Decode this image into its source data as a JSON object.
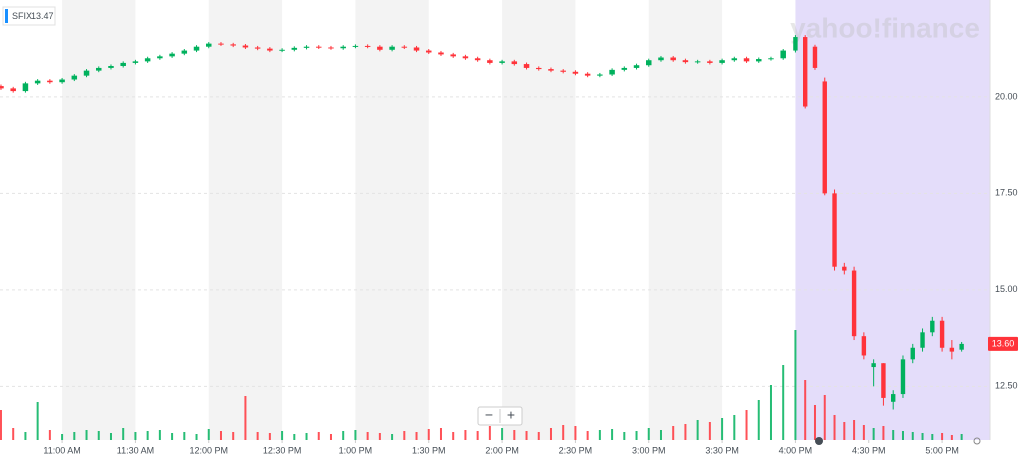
{
  "chart_data": {
    "type": "candlestick",
    "ticker": "SFIX",
    "ticker_price": 13.47,
    "watermark": "yahoo!finance",
    "controls": {
      "zoom_out": "−",
      "zoom_in": "+"
    },
    "last_price": 13.6,
    "last_price_label": "13.60",
    "up_color": "#00b15d",
    "down_color": "#ff333a",
    "legend_color": "#188fff",
    "band_color": "#f3f3f3",
    "after_hours_color": "#e4ddfa",
    "after_hours_from": 960,
    "grid": true,
    "xlim": [
      634.6,
      1039.6
    ],
    "ylim": [
      11.11,
      22.51
    ],
    "xticks": [
      {
        "value": 660,
        "label": "11:00 AM"
      },
      {
        "value": 690,
        "label": "11:30 AM"
      },
      {
        "value": 720,
        "label": "12:00 PM"
      },
      {
        "value": 750,
        "label": "12:30 PM"
      },
      {
        "value": 780,
        "label": "1:00 PM"
      },
      {
        "value": 810,
        "label": "1:30 PM"
      },
      {
        "value": 840,
        "label": "2:00 PM"
      },
      {
        "value": 870,
        "label": "2:30 PM"
      },
      {
        "value": 900,
        "label": "3:00 PM"
      },
      {
        "value": 930,
        "label": "3:30 PM"
      },
      {
        "value": 960,
        "label": "4:00 PM"
      },
      {
        "value": 990,
        "label": "4:30 PM"
      },
      {
        "value": 1020,
        "label": "5:00 PM"
      }
    ],
    "yticks": [
      {
        "value": 12.5,
        "label": "12.50"
      },
      {
        "value": 15,
        "label": "15.00"
      },
      {
        "value": 17.5,
        "label": "17.50"
      },
      {
        "value": 20,
        "label": "20.00"
      }
    ],
    "candles": [
      [
        635,
        20.28,
        20.32,
        20.18,
        20.22
      ],
      [
        640,
        20.22,
        20.26,
        20.11,
        20.15
      ],
      [
        645,
        20.15,
        20.39,
        20.11,
        20.35
      ],
      [
        650,
        20.35,
        20.46,
        20.31,
        20.42
      ],
      [
        655,
        20.42,
        20.46,
        20.34,
        20.38
      ],
      [
        660,
        20.38,
        20.49,
        20.34,
        20.45
      ],
      [
        665,
        20.45,
        20.59,
        20.41,
        20.55
      ],
      [
        670,
        20.55,
        20.72,
        20.51,
        20.68
      ],
      [
        675,
        20.68,
        20.79,
        20.64,
        20.75
      ],
      [
        680,
        20.75,
        20.84,
        20.71,
        20.8
      ],
      [
        685,
        20.8,
        20.92,
        20.76,
        20.88
      ],
      [
        690,
        20.88,
        20.96,
        20.84,
        20.92
      ],
      [
        695,
        20.92,
        21.04,
        20.88,
        21
      ],
      [
        700,
        21,
        21.09,
        20.96,
        21.05
      ],
      [
        705,
        21.05,
        21.16,
        21.01,
        21.12
      ],
      [
        710,
        21.12,
        21.24,
        21.08,
        21.2
      ],
      [
        715,
        21.2,
        21.34,
        21.16,
        21.3
      ],
      [
        720,
        21.3,
        21.42,
        21.26,
        21.38
      ],
      [
        725,
        21.38,
        21.42,
        21.32,
        21.36
      ],
      [
        730,
        21.36,
        21.4,
        21.29,
        21.33
      ],
      [
        735,
        21.33,
        21.37,
        21.24,
        21.28
      ],
      [
        740,
        21.28,
        21.32,
        21.21,
        21.25
      ],
      [
        745,
        21.25,
        21.29,
        21.16,
        21.2
      ],
      [
        750,
        21.2,
        21.26,
        21.16,
        21.22
      ],
      [
        755,
        21.22,
        21.31,
        21.18,
        21.27
      ],
      [
        760,
        21.27,
        21.34,
        21.23,
        21.3
      ],
      [
        765,
        21.3,
        21.34,
        21.24,
        21.28
      ],
      [
        770,
        21.28,
        21.32,
        21.22,
        21.26
      ],
      [
        775,
        21.26,
        21.34,
        21.22,
        21.3
      ],
      [
        780,
        21.3,
        21.36,
        21.26,
        21.32
      ],
      [
        785,
        21.32,
        21.36,
        21.26,
        21.3
      ],
      [
        790,
        21.3,
        21.34,
        21.18,
        21.22
      ],
      [
        795,
        21.22,
        21.34,
        21.18,
        21.3
      ],
      [
        800,
        21.3,
        21.34,
        21.24,
        21.28
      ],
      [
        805,
        21.28,
        21.32,
        21.16,
        21.2
      ],
      [
        810,
        21.2,
        21.24,
        21.11,
        21.15
      ],
      [
        815,
        21.15,
        21.19,
        21.06,
        21.1
      ],
      [
        820,
        21.1,
        21.14,
        21.01,
        21.05
      ],
      [
        825,
        21.05,
        21.09,
        20.96,
        21
      ],
      [
        830,
        21,
        21.04,
        20.91,
        20.95
      ],
      [
        835,
        20.95,
        20.99,
        20.84,
        20.88
      ],
      [
        840,
        20.88,
        20.96,
        20.84,
        20.92
      ],
      [
        845,
        20.92,
        20.96,
        20.81,
        20.85
      ],
      [
        850,
        20.85,
        20.89,
        20.71,
        20.75
      ],
      [
        855,
        20.75,
        20.79,
        20.68,
        20.72
      ],
      [
        860,
        20.72,
        20.76,
        20.64,
        20.68
      ],
      [
        865,
        20.68,
        20.72,
        20.61,
        20.65
      ],
      [
        870,
        20.65,
        20.69,
        20.56,
        20.6
      ],
      [
        875,
        20.6,
        20.64,
        20.51,
        20.55
      ],
      [
        880,
        20.55,
        20.62,
        20.51,
        20.58
      ],
      [
        885,
        20.58,
        20.74,
        20.54,
        20.7
      ],
      [
        890,
        20.7,
        20.79,
        20.66,
        20.75
      ],
      [
        895,
        20.75,
        20.86,
        20.71,
        20.82
      ],
      [
        900,
        20.82,
        20.99,
        20.78,
        20.95
      ],
      [
        905,
        20.95,
        21.06,
        20.91,
        21.02
      ],
      [
        910,
        21.02,
        21.06,
        20.91,
        20.95
      ],
      [
        915,
        20.95,
        20.99,
        20.86,
        20.9
      ],
      [
        920,
        20.9,
        20.96,
        20.86,
        20.92
      ],
      [
        925,
        20.92,
        20.96,
        20.84,
        20.88
      ],
      [
        930,
        20.88,
        20.99,
        20.84,
        20.95
      ],
      [
        935,
        20.95,
        21.04,
        20.91,
        21
      ],
      [
        940,
        21,
        21.04,
        20.88,
        20.92
      ],
      [
        945,
        20.92,
        21.02,
        20.88,
        20.98
      ],
      [
        950,
        20.98,
        21.04,
        20.94,
        21
      ],
      [
        955,
        21,
        21.24,
        20.96,
        21.2
      ],
      [
        960,
        21.2,
        21.6,
        21.15,
        21.55
      ],
      [
        964,
        21.55,
        21.6,
        19.7,
        19.75
      ],
      [
        968,
        21.3,
        21.35,
        20.7,
        20.75
      ],
      [
        972,
        20.4,
        20.5,
        17.45,
        17.5
      ],
      [
        976,
        17.5,
        17.6,
        15.5,
        15.6
      ],
      [
        980,
        15.6,
        15.7,
        15.4,
        15.5
      ],
      [
        984,
        15.5,
        15.6,
        13.7,
        13.8
      ],
      [
        988,
        13.8,
        13.9,
        13.2,
        13.3
      ],
      [
        992,
        13,
        13.2,
        12.5,
        13.1
      ],
      [
        996,
        13.1,
        13.1,
        12,
        12.2
      ],
      [
        1000,
        12.1,
        12.4,
        11.9,
        12.3
      ],
      [
        1004,
        12.3,
        13.3,
        12.2,
        13.2
      ],
      [
        1008,
        13.2,
        13.6,
        13.1,
        13.5
      ],
      [
        1012,
        13.5,
        14,
        13.4,
        13.9
      ],
      [
        1016,
        13.9,
        14.3,
        13.8,
        14.2
      ],
      [
        1020,
        14.2,
        14.3,
        13.4,
        13.5
      ],
      [
        1024,
        13.5,
        13.7,
        13.2,
        13.4
      ],
      [
        1028,
        13.45,
        13.65,
        13.4,
        13.6
      ]
    ],
    "volume": [
      30,
      12,
      8,
      38,
      10,
      6,
      8,
      10,
      9,
      7,
      12,
      8,
      9,
      10,
      7,
      8,
      6,
      11,
      9,
      8,
      44,
      8,
      7,
      9,
      6,
      7,
      8,
      6,
      9,
      10,
      8,
      7,
      6,
      9,
      8,
      11,
      12,
      8,
      10,
      9,
      14,
      12,
      10,
      9,
      8,
      12,
      15,
      14,
      9,
      10,
      11,
      8,
      9,
      12,
      10,
      14,
      16,
      20,
      18,
      22,
      25,
      30,
      40,
      55,
      75,
      110,
      60,
      35,
      45,
      25,
      18,
      20,
      15,
      12,
      14,
      10,
      9,
      8,
      7,
      6,
      7,
      5,
      6
    ]
  }
}
